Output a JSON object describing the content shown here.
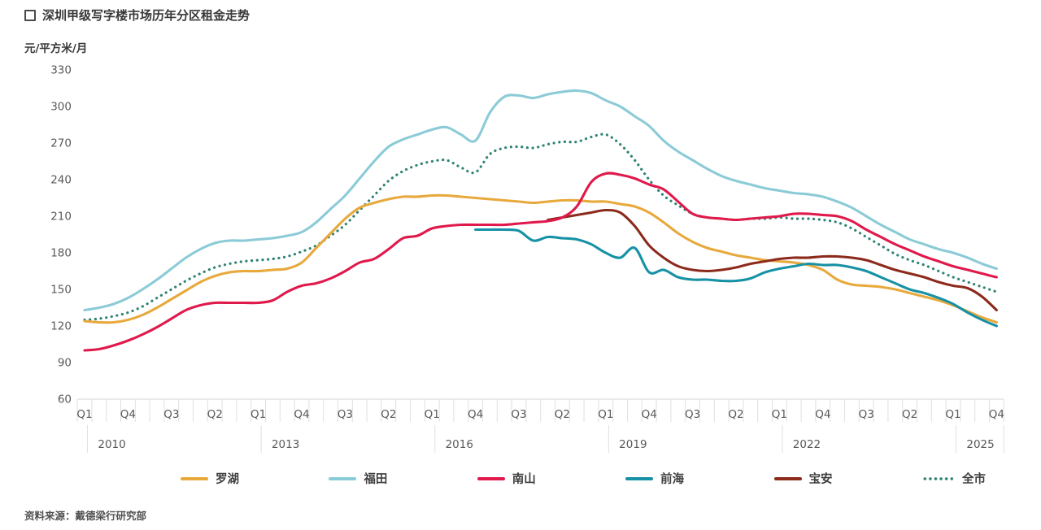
{
  "title": "深圳甲级写字楼市场历年分区租金走势",
  "source": "资料来源：戴德梁行研究部",
  "y_axis": {
    "unit": "元/平方米/月",
    "min": 60,
    "max": 330,
    "step": 30,
    "tick_values": [
      330,
      300,
      270,
      240,
      210,
      180,
      150,
      120,
      90,
      60
    ]
  },
  "x_axis": {
    "quarter_tick_labels": [
      "Q1",
      "Q4",
      "Q3",
      "Q2",
      "Q1",
      "Q4",
      "Q3",
      "Q2",
      "Q1",
      "Q4",
      "Q3",
      "Q2",
      "Q1",
      "Q4",
      "Q3",
      "Q2",
      "Q1",
      "Q4",
      "Q3",
      "Q2",
      "Q1",
      "Q4"
    ],
    "year_labels": [
      "2010",
      "2013",
      "2016",
      "2019",
      "2022",
      "2025"
    ]
  },
  "legend": [
    {
      "label": "罗湖",
      "color": "#E8A93C",
      "style": "solid"
    },
    {
      "label": "福田",
      "color": "#8BCBD7",
      "style": "solid"
    },
    {
      "label": "南山",
      "color": "#E0194B",
      "style": "solid"
    },
    {
      "label": "前海",
      "color": "#1791A5",
      "style": "solid"
    },
    {
      "label": "宝安",
      "color": "#8C2A1C",
      "style": "solid"
    },
    {
      "label": "全市",
      "color": "#2E8373",
      "style": "dotted"
    }
  ],
  "chart_data": {
    "type": "line",
    "title": "深圳甲级写字楼市场历年分区租金走势",
    "ylabel": "元/平方米/月",
    "ylim": [
      60,
      330
    ],
    "grid": false,
    "legend_position": "bottom",
    "categories": [
      "2010Q1",
      "2010Q2",
      "2010Q3",
      "2010Q4",
      "2011Q1",
      "2011Q2",
      "2011Q3",
      "2011Q4",
      "2012Q1",
      "2012Q2",
      "2012Q3",
      "2012Q4",
      "2013Q1",
      "2013Q2",
      "2013Q3",
      "2013Q4",
      "2014Q1",
      "2014Q2",
      "2014Q3",
      "2014Q4",
      "2015Q1",
      "2015Q2",
      "2015Q3",
      "2015Q4",
      "2016Q1",
      "2016Q2",
      "2016Q3",
      "2016Q4",
      "2017Q1",
      "2017Q2",
      "2017Q3",
      "2017Q4",
      "2018Q1",
      "2018Q2",
      "2018Q3",
      "2018Q4",
      "2019Q1",
      "2019Q2",
      "2019Q3",
      "2019Q4",
      "2020Q1",
      "2020Q2",
      "2020Q3",
      "2020Q4",
      "2021Q1",
      "2021Q2",
      "2021Q3",
      "2021Q4",
      "2022Q1",
      "2022Q2",
      "2022Q3",
      "2022Q4",
      "2023Q1",
      "2023Q2",
      "2023Q3",
      "2023Q4",
      "2024Q1",
      "2024Q2",
      "2024Q3",
      "2024Q4",
      "2025Q1",
      "2025Q2",
      "2025Q3",
      "2025Q4"
    ],
    "series": [
      {
        "name": "罗湖",
        "color": "#E8A93C",
        "dash": "solid",
        "values": [
          124,
          123,
          123,
          125,
          129,
          135,
          142,
          149,
          156,
          161,
          164,
          165,
          165,
          166,
          167,
          172,
          184,
          196,
          208,
          217,
          221,
          224,
          226,
          226,
          227,
          227,
          226,
          225,
          224,
          223,
          222,
          221,
          222,
          223,
          223,
          222,
          222,
          220,
          218,
          213,
          205,
          196,
          189,
          184,
          181,
          178,
          176,
          174,
          173,
          172,
          170,
          166,
          158,
          154,
          153,
          152,
          150,
          147,
          144,
          141,
          137,
          132,
          127,
          123
        ]
      },
      {
        "name": "福田",
        "color": "#8BCBD7",
        "dash": "solid",
        "values": [
          133,
          135,
          138,
          143,
          150,
          158,
          167,
          176,
          183,
          188,
          190,
          190,
          191,
          192,
          194,
          197,
          205,
          216,
          227,
          241,
          255,
          267,
          273,
          277,
          281,
          283,
          277,
          272,
          295,
          308,
          309,
          307,
          310,
          312,
          313,
          311,
          305,
          300,
          292,
          284,
          272,
          263,
          256,
          249,
          243,
          239,
          236,
          233,
          231,
          229,
          228,
          226,
          222,
          217,
          210,
          203,
          197,
          191,
          187,
          183,
          180,
          176,
          171,
          167
        ]
      },
      {
        "name": "南山",
        "color": "#E0194B",
        "dash": "solid",
        "values": [
          100,
          101,
          104,
          108,
          113,
          119,
          126,
          133,
          137,
          139,
          139,
          139,
          139,
          141,
          148,
          153,
          155,
          159,
          165,
          172,
          175,
          183,
          192,
          194,
          200,
          202,
          203,
          203,
          203,
          203,
          204,
          205,
          206,
          209,
          218,
          238,
          245,
          244,
          241,
          236,
          232,
          222,
          212,
          209,
          208,
          207,
          208,
          209,
          210,
          212,
          212,
          211,
          210,
          206,
          199,
          193,
          187,
          182,
          177,
          173,
          169,
          166,
          163,
          160
        ]
      },
      {
        "name": "前海",
        "color": "#1791A5",
        "dash": "solid",
        "values": [
          null,
          null,
          null,
          null,
          null,
          null,
          null,
          null,
          null,
          null,
          null,
          null,
          null,
          null,
          null,
          null,
          null,
          null,
          null,
          null,
          null,
          null,
          null,
          null,
          null,
          null,
          null,
          199,
          199,
          199,
          198,
          190,
          193,
          192,
          191,
          187,
          180,
          176,
          184,
          164,
          166,
          160,
          158,
          158,
          157,
          157,
          159,
          164,
          167,
          169,
          171,
          170,
          170,
          168,
          165,
          160,
          155,
          150,
          147,
          143,
          138,
          131,
          125,
          120
        ]
      },
      {
        "name": "宝安",
        "color": "#8C2A1C",
        "dash": "solid",
        "values": [
          null,
          null,
          null,
          null,
          null,
          null,
          null,
          null,
          null,
          null,
          null,
          null,
          null,
          null,
          null,
          null,
          null,
          null,
          null,
          null,
          null,
          null,
          null,
          null,
          null,
          null,
          null,
          null,
          null,
          null,
          null,
          null,
          207,
          209,
          211,
          213,
          215,
          213,
          202,
          186,
          176,
          169,
          166,
          165,
          166,
          168,
          171,
          173,
          175,
          176,
          176,
          177,
          177,
          176,
          174,
          170,
          166,
          163,
          160,
          156,
          153,
          151,
          144,
          133
        ]
      },
      {
        "name": "全市",
        "color": "#2E8373",
        "dash": "dotted",
        "values": [
          125,
          126,
          128,
          131,
          136,
          143,
          150,
          157,
          163,
          168,
          171,
          173,
          174,
          175,
          177,
          181,
          186,
          194,
          203,
          215,
          227,
          239,
          247,
          252,
          255,
          256,
          250,
          246,
          261,
          266,
          267,
          266,
          269,
          271,
          271,
          275,
          277,
          269,
          256,
          240,
          227,
          219,
          212,
          209,
          208,
          207,
          208,
          208,
          209,
          208,
          208,
          207,
          205,
          200,
          193,
          186,
          179,
          174,
          170,
          165,
          160,
          156,
          152,
          148
        ]
      }
    ]
  }
}
